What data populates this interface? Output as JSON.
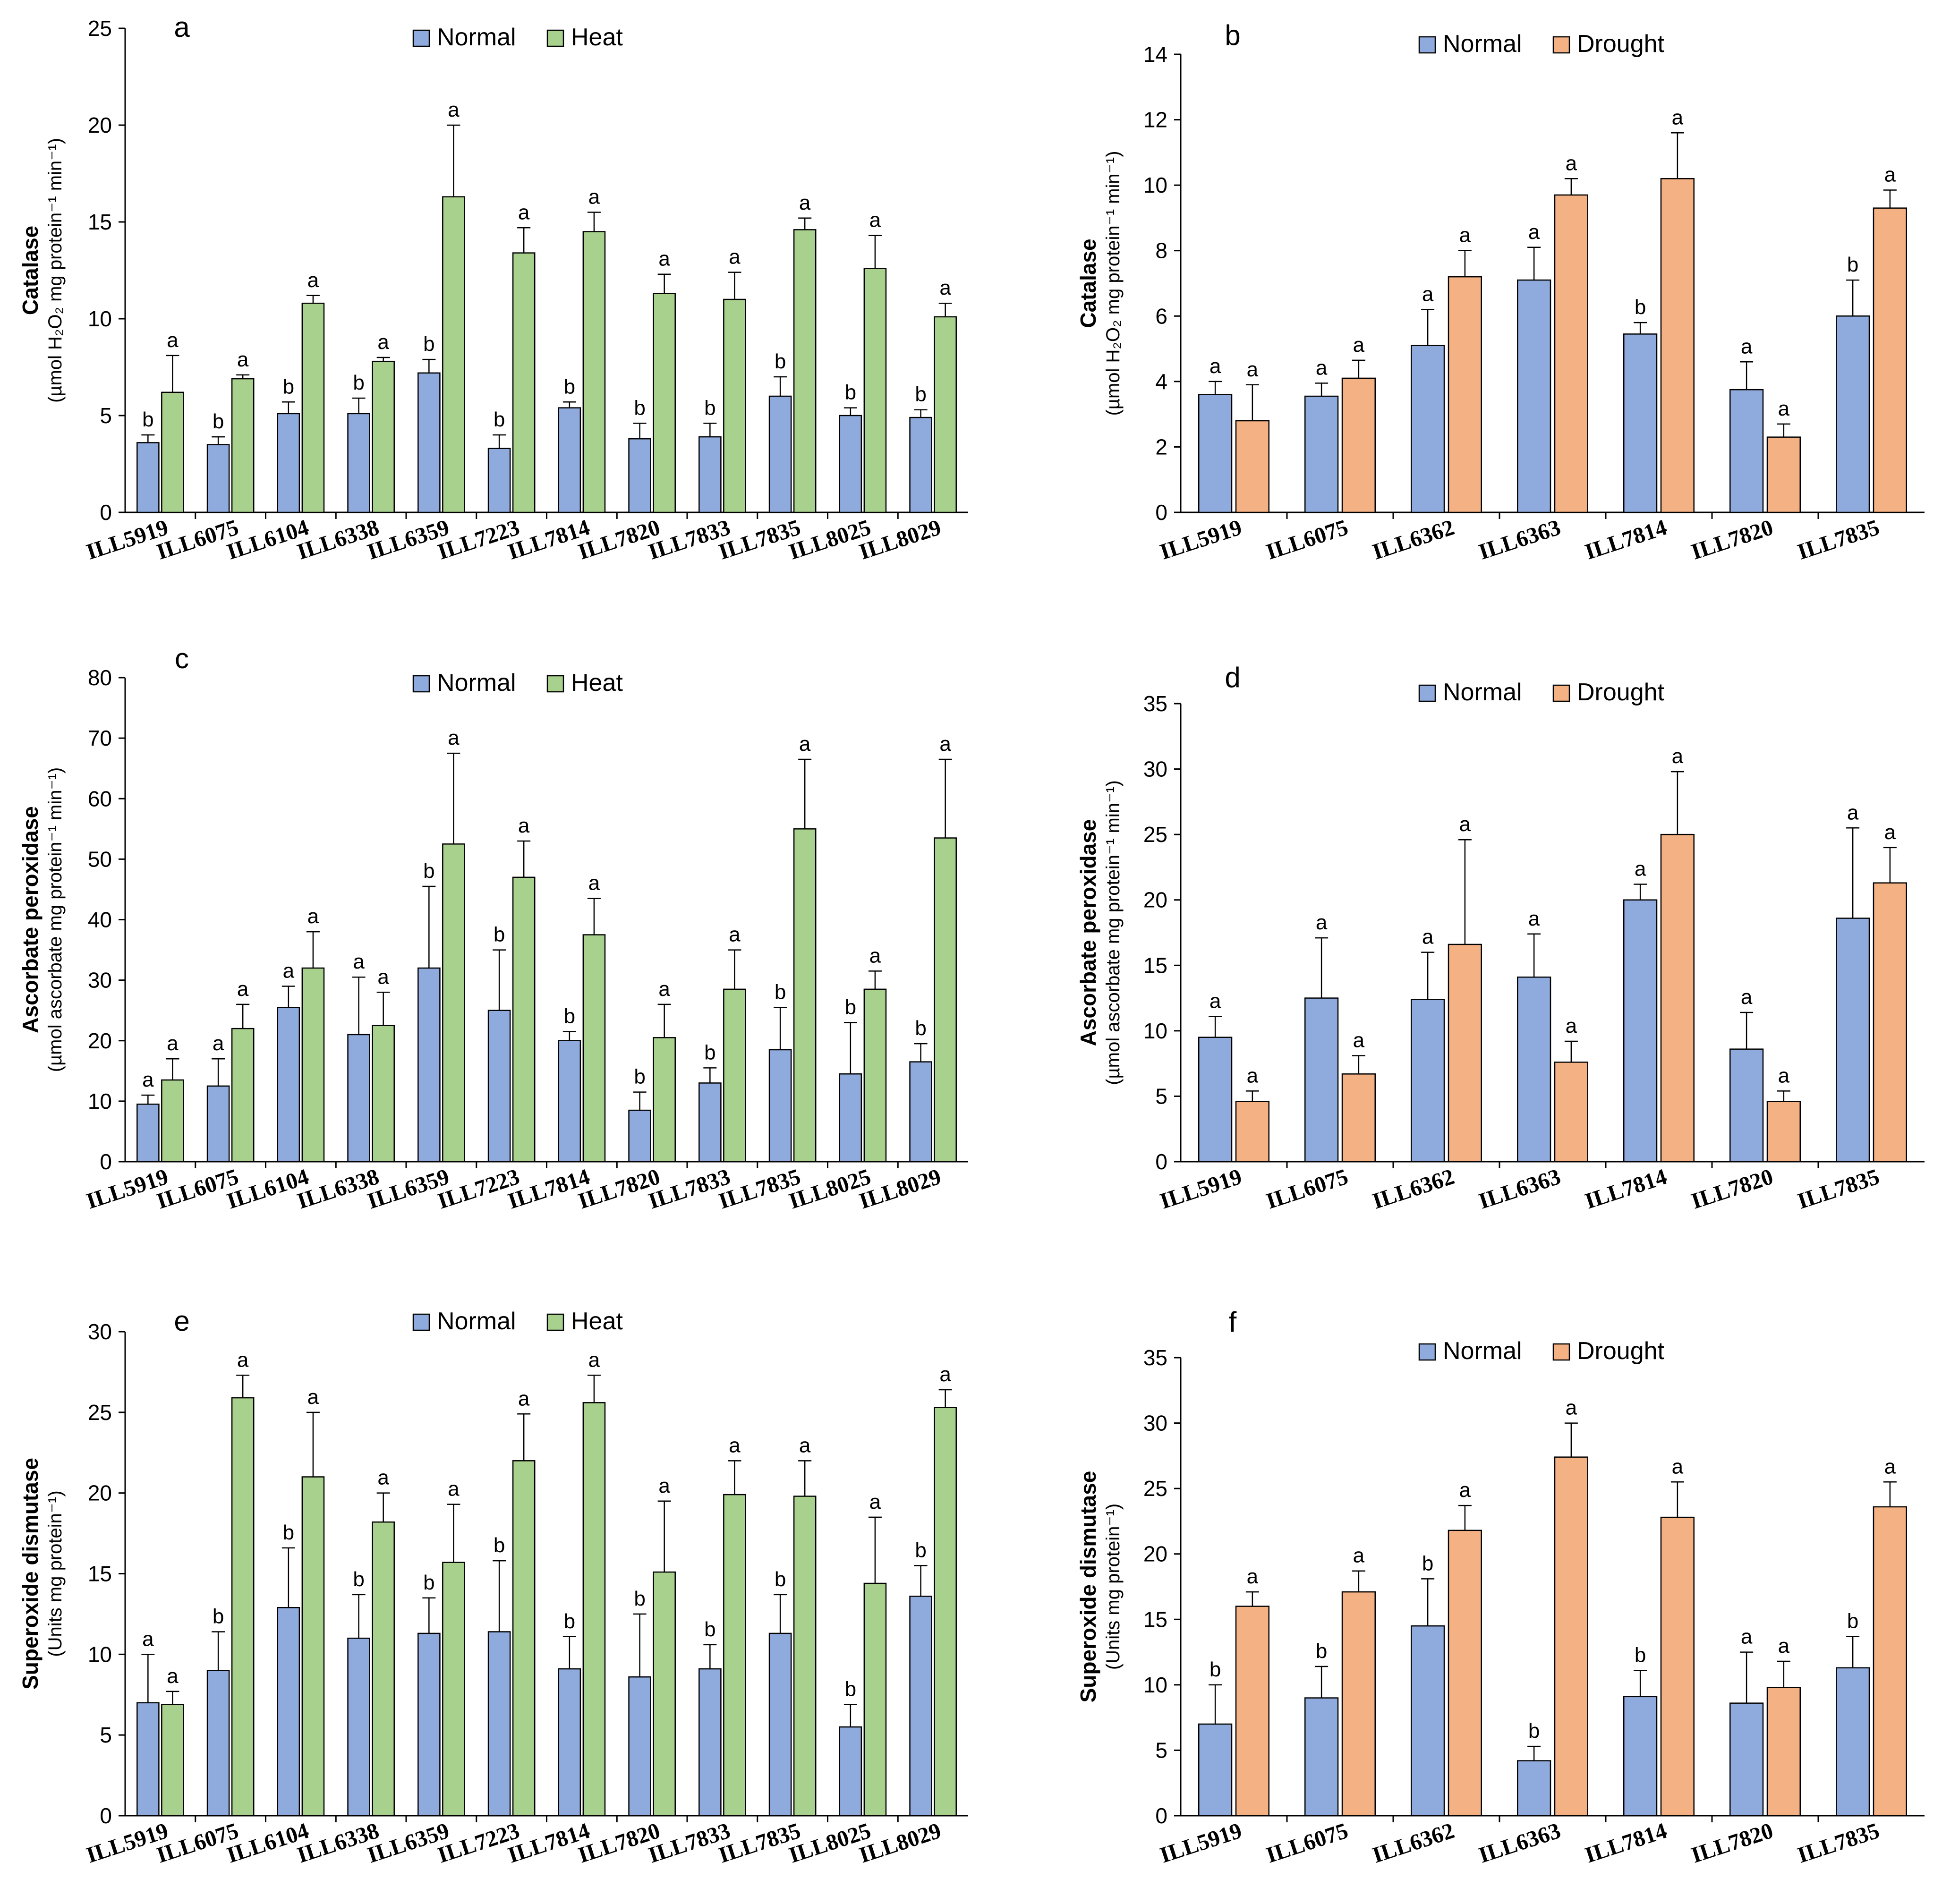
{
  "colors": {
    "normal": "#8FAADC",
    "heat": "#A9D18E",
    "drought": "#F4B183",
    "axis": "#000000"
  },
  "chart_data": [
    {
      "panel": "a",
      "type": "bar",
      "categories": [
        "ILL5919",
        "ILL6075",
        "ILL6104",
        "ILL6338",
        "ILL6359",
        "ILL7223",
        "ILL7814",
        "ILL7820",
        "ILL7833",
        "ILL7835",
        "ILL8025",
        "ILL8029"
      ],
      "series": [
        {
          "name": "Normal",
          "color_key": "normal",
          "values": [
            3.6,
            3.5,
            5.1,
            5.1,
            7.2,
            3.3,
            5.4,
            3.8,
            3.9,
            6.0,
            5.0,
            4.9
          ],
          "errors": [
            0.4,
            0.4,
            0.6,
            0.8,
            0.7,
            0.7,
            0.3,
            0.8,
            0.7,
            1.0,
            0.4,
            0.4
          ],
          "sig": [
            "b",
            "b",
            "b",
            "b",
            "b",
            "b",
            "b",
            "b",
            "b",
            "b",
            "b",
            "b"
          ]
        },
        {
          "name": "Heat",
          "color_key": "heat",
          "values": [
            6.2,
            6.9,
            10.8,
            7.8,
            16.3,
            13.4,
            14.5,
            11.3,
            11.0,
            14.6,
            12.6,
            10.1
          ],
          "errors": [
            1.9,
            0.2,
            0.4,
            0.2,
            3.7,
            1.3,
            1.0,
            1.0,
            1.4,
            0.6,
            1.7,
            0.7
          ],
          "sig": [
            "a",
            "a",
            "a",
            "a",
            "a",
            "a",
            "a",
            "a",
            "a",
            "a",
            "a",
            "a"
          ]
        }
      ],
      "ylim": [
        0,
        25
      ],
      "yticks": [
        0,
        5,
        10,
        15,
        20,
        25
      ],
      "ylabel": "Catalase",
      "yunit": "(µmol H₂O₂ mg protein⁻¹ min⁻¹)",
      "legend": [
        "Normal",
        "Heat"
      ],
      "legend_position": "top-center"
    },
    {
      "panel": "b",
      "type": "bar",
      "categories": [
        "ILL5919",
        "ILL6075",
        "ILL6362",
        "ILL6363",
        "ILL7814",
        "ILL7820",
        "ILL7835"
      ],
      "series": [
        {
          "name": "Normal",
          "color_key": "normal",
          "values": [
            3.6,
            3.55,
            5.1,
            7.1,
            5.45,
            3.75,
            6.0
          ],
          "errors": [
            0.4,
            0.4,
            1.1,
            1.0,
            0.35,
            0.85,
            1.1
          ],
          "sig": [
            "a",
            "a",
            "a",
            "a",
            "b",
            "a",
            "b"
          ]
        },
        {
          "name": "Drought",
          "color_key": "drought",
          "values": [
            2.8,
            4.1,
            7.2,
            9.7,
            10.2,
            2.3,
            9.3
          ],
          "errors": [
            1.1,
            0.55,
            0.8,
            0.5,
            1.4,
            0.4,
            0.55
          ],
          "sig": [
            "a",
            "a",
            "a",
            "a",
            "a",
            "a",
            "a"
          ]
        }
      ],
      "ylim": [
        0,
        14
      ],
      "yticks": [
        0,
        2,
        4,
        6,
        8,
        10,
        12,
        14
      ],
      "ylabel": "Catalase",
      "yunit": "(µmol H₂O₂ mg protein⁻¹ min⁻¹)",
      "legend": [
        "Normal",
        "Drought"
      ],
      "legend_position": "top-center"
    },
    {
      "panel": "c",
      "type": "bar",
      "categories": [
        "ILL5919",
        "ILL6075",
        "ILL6104",
        "ILL6338",
        "ILL6359",
        "ILL7223",
        "ILL7814",
        "ILL7820",
        "ILL7833",
        "ILL7835",
        "ILL8025",
        "ILL8029"
      ],
      "series": [
        {
          "name": "Normal",
          "color_key": "normal",
          "values": [
            9.5,
            12.5,
            25.5,
            21.0,
            32.0,
            25.0,
            20.0,
            8.5,
            13.0,
            18.5,
            14.5,
            16.5
          ],
          "errors": [
            1.5,
            4.5,
            3.5,
            9.5,
            13.5,
            10.0,
            1.5,
            3.0,
            2.5,
            7.0,
            8.5,
            3.0
          ],
          "sig": [
            "a",
            "a",
            "a",
            "a",
            "b",
            "b",
            "b",
            "b",
            "b",
            "b",
            "b",
            "b"
          ]
        },
        {
          "name": "Heat",
          "color_key": "heat",
          "values": [
            13.5,
            22.0,
            32.0,
            22.5,
            52.5,
            47.0,
            37.5,
            20.5,
            28.5,
            55.0,
            28.5,
            53.5
          ],
          "errors": [
            3.5,
            4.0,
            6.0,
            5.5,
            15.0,
            6.0,
            6.0,
            5.5,
            6.5,
            11.5,
            3.0,
            13.0
          ],
          "sig": [
            "a",
            "a",
            "a",
            "a",
            "a",
            "a",
            "a",
            "a",
            "a",
            "a",
            "a",
            "a"
          ]
        }
      ],
      "ylim": [
        0,
        80
      ],
      "yticks": [
        0,
        10,
        20,
        30,
        40,
        50,
        60,
        70,
        80
      ],
      "ylabel": "Ascorbate peroxidase",
      "yunit": "(µmol ascorbate mg protein⁻¹ min⁻¹)",
      "legend": [
        "Normal",
        "Heat"
      ],
      "legend_position": "top-center"
    },
    {
      "panel": "d",
      "type": "bar",
      "categories": [
        "ILL5919",
        "ILL6075",
        "ILL6362",
        "ILL6363",
        "ILL7814",
        "ILL7820",
        "ILL7835"
      ],
      "series": [
        {
          "name": "Normal",
          "color_key": "normal",
          "values": [
            9.5,
            12.5,
            12.4,
            14.1,
            20.0,
            8.6,
            18.6
          ],
          "errors": [
            1.6,
            4.6,
            3.6,
            3.3,
            1.2,
            2.8,
            6.9
          ],
          "sig": [
            "a",
            "a",
            "a",
            "a",
            "a",
            "a",
            "a"
          ]
        },
        {
          "name": "Drought",
          "color_key": "drought",
          "values": [
            4.6,
            6.7,
            16.6,
            7.6,
            25.0,
            4.6,
            21.3
          ],
          "errors": [
            0.8,
            1.4,
            8.0,
            1.6,
            4.8,
            0.8,
            2.7
          ],
          "sig": [
            "a",
            "a",
            "a",
            "a",
            "a",
            "a",
            "a"
          ]
        }
      ],
      "ylim": [
        0,
        35
      ],
      "yticks": [
        0,
        5,
        10,
        15,
        20,
        25,
        30,
        35
      ],
      "ylabel": "Ascorbate peroxidase",
      "yunit": "(µmol ascorbate mg protein⁻¹ min⁻¹)",
      "legend": [
        "Normal",
        "Drought"
      ],
      "legend_position": "top-center"
    },
    {
      "panel": "e",
      "type": "bar",
      "categories": [
        "ILL5919",
        "ILL6075",
        "ILL6104",
        "ILL6338",
        "ILL6359",
        "ILL7223",
        "ILL7814",
        "ILL7820",
        "ILL7833",
        "ILL7835",
        "ILL8025",
        "ILL8029"
      ],
      "series": [
        {
          "name": "Normal",
          "color_key": "normal",
          "values": [
            7.0,
            9.0,
            12.9,
            11.0,
            11.3,
            11.4,
            9.1,
            8.6,
            9.1,
            11.3,
            5.5,
            13.6
          ],
          "errors": [
            3.0,
            2.4,
            3.7,
            2.7,
            2.2,
            4.4,
            2.0,
            3.9,
            1.5,
            2.4,
            1.4,
            1.9
          ],
          "sig": [
            "a",
            "b",
            "b",
            "b",
            "b",
            "b",
            "b",
            "b",
            "b",
            "b",
            "b",
            "b"
          ]
        },
        {
          "name": "Heat",
          "color_key": "heat",
          "values": [
            6.9,
            25.9,
            21.0,
            18.2,
            15.7,
            22.0,
            25.6,
            15.1,
            19.9,
            19.8,
            14.4,
            25.3
          ],
          "errors": [
            0.8,
            1.4,
            4.0,
            1.8,
            3.6,
            2.9,
            1.7,
            4.4,
            2.1,
            2.2,
            4.1,
            1.1
          ],
          "sig": [
            "a",
            "a",
            "a",
            "a",
            "a",
            "a",
            "a",
            "a",
            "a",
            "a",
            "a",
            "a"
          ]
        }
      ],
      "ylim": [
        0,
        30
      ],
      "yticks": [
        0,
        5,
        10,
        15,
        20,
        25,
        30
      ],
      "ylabel": "Superoxide dismutase",
      "yunit": "(Units mg protein⁻¹)",
      "legend": [
        "Normal",
        "Heat"
      ],
      "legend_position": "top-center"
    },
    {
      "panel": "f",
      "type": "bar",
      "categories": [
        "ILL5919",
        "ILL6075",
        "ILL6362",
        "ILL6363",
        "ILL7814",
        "ILL7820",
        "ILL7835"
      ],
      "series": [
        {
          "name": "Normal",
          "color_key": "normal",
          "values": [
            7.0,
            9.0,
            14.5,
            4.2,
            9.1,
            8.6,
            11.3
          ],
          "errors": [
            3.0,
            2.4,
            3.6,
            1.1,
            2.0,
            3.9,
            2.4
          ],
          "sig": [
            "b",
            "b",
            "b",
            "b",
            "b",
            "a",
            "b"
          ]
        },
        {
          "name": "Drought",
          "color_key": "drought",
          "values": [
            16.0,
            17.1,
            21.8,
            27.4,
            22.8,
            9.8,
            23.6
          ],
          "errors": [
            1.1,
            1.6,
            1.9,
            2.6,
            2.7,
            2.0,
            1.9
          ],
          "sig": [
            "a",
            "a",
            "a",
            "a",
            "a",
            "a",
            "a"
          ]
        }
      ],
      "ylim": [
        0,
        35
      ],
      "yticks": [
        0,
        5,
        10,
        15,
        20,
        25,
        30,
        35
      ],
      "ylabel": "Superoxide dismutase",
      "yunit": "(Units mg protein⁻¹)",
      "legend": [
        "Normal",
        "Drought"
      ],
      "legend_position": "top-center"
    }
  ]
}
